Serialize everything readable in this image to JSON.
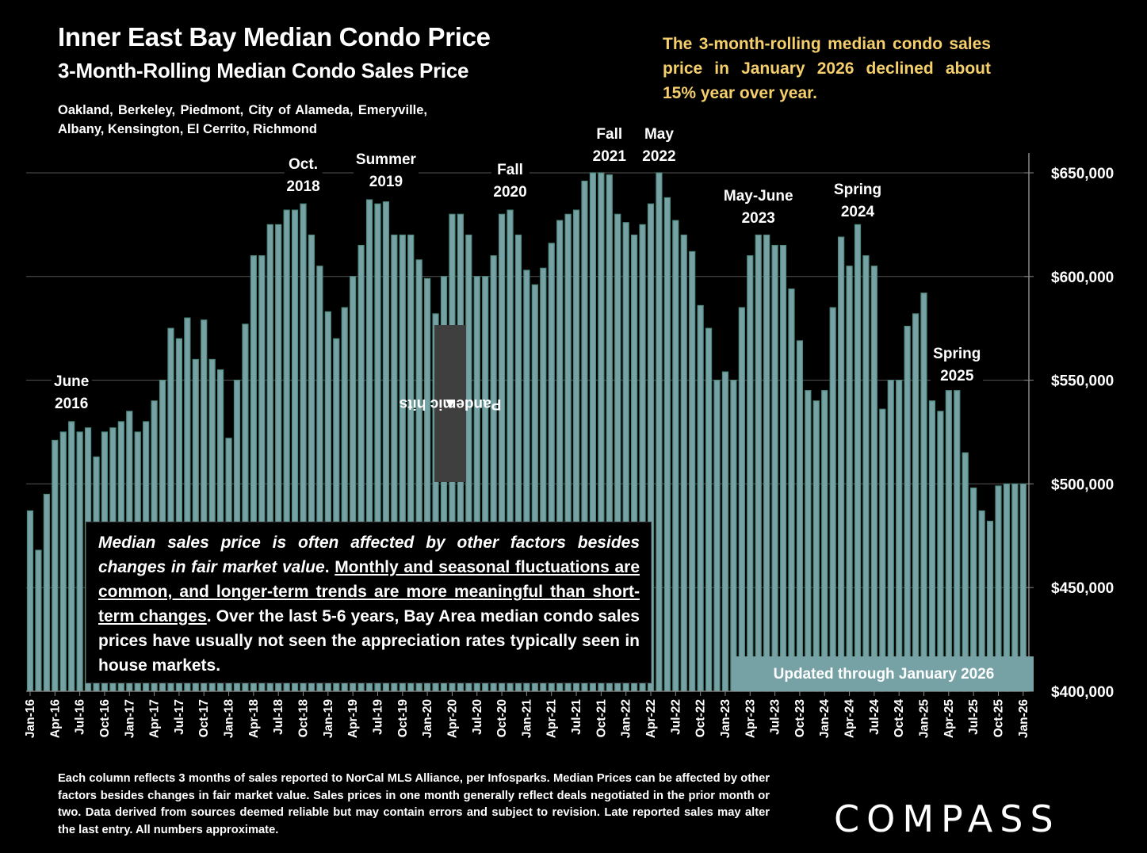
{
  "header": {
    "title": "Inner East Bay Median Condo Price",
    "subtitle": "3-Month-Rolling Median Condo Sales Price",
    "areas": "Oakland, Berkeley, Piedmont, City of Alameda, Emeryville, Albany, Kensington, El Cerrito, Richmond"
  },
  "callout": "The 3-month-rolling median condo sales price in January 2026 declined about 15% year over year.",
  "pandemic_label": "Pandemic hits",
  "pandemic_arrow": "▲",
  "note": {
    "italic": "Median sales price is often affected by other factors besides changes in fair market value",
    "sep": ". ",
    "underlined": "Monthly and seasonal fluctuations are common, and longer-term trends are more meaningful than short-term changes",
    "rest": ". Over the last 5-6 years, Bay Area median condo sales prices have usually not seen the appreciation rates typically seen in house markets."
  },
  "updated_label": "Updated through January 2026",
  "footnote": "Each column reflects 3 months of sales reported to NorCal MLS Alliance, per Infosparks. Median Prices can be affected by other factors besides changes in fair market value. Sales prices in one month generally reflect deals negotiated in the prior month or two. Data derived from sources deemed reliable but may contain errors and subject to revision. Late reported sales may alter the last entry. All numbers approximate.",
  "logo": "COMPASS",
  "colors": {
    "bar": "#76a2a6",
    "bar_edge": "#4e8a7e",
    "callout": "#f5cf6b",
    "grid": "#555555"
  },
  "chart_data": {
    "type": "bar",
    "title": "Inner East Bay Median Condo Price",
    "xlabel": "",
    "ylabel": "",
    "ylim": [
      400000,
      650000
    ],
    "yticks": [
      400000,
      450000,
      500000,
      550000,
      600000,
      650000
    ],
    "ytick_labels": [
      "$400,000",
      "$450,000",
      "$500,000",
      "$550,000",
      "$600,000",
      "$650,000"
    ],
    "grid": true,
    "y_axis_side": "right",
    "start_month": "Jan-16",
    "end_month": "Jan-26",
    "xtick_labels": [
      "Jan-16",
      "Apr-16",
      "Jul-16",
      "Oct-16",
      "Jan-17",
      "Apr-17",
      "Jul-17",
      "Oct-17",
      "Jan-18",
      "Apr-18",
      "Jul-18",
      "Oct-18",
      "Jan-19",
      "Apr-19",
      "Jul-19",
      "Oct-19",
      "Jan-20",
      "Apr-20",
      "Jul-20",
      "Oct-20",
      "Jan-21",
      "Apr-21",
      "Jul-21",
      "Oct-21",
      "Jan-22",
      "Apr-22",
      "Jul-22",
      "Oct-22",
      "Jan-23",
      "Apr-23",
      "Jul-23",
      "Oct-23",
      "Jan-24",
      "Apr-24",
      "Jul-24",
      "Oct-24",
      "Jan-25",
      "Apr-25",
      "Jul-25",
      "Oct-25",
      "Jan-26"
    ],
    "values": [
      487000,
      468000,
      495000,
      521000,
      525000,
      530000,
      525000,
      527000,
      513000,
      525000,
      527000,
      530000,
      535000,
      525000,
      530000,
      540000,
      550000,
      575000,
      570000,
      580000,
      560000,
      579000,
      560000,
      555000,
      522000,
      550000,
      577000,
      610000,
      610000,
      625000,
      625000,
      632000,
      632000,
      635000,
      620000,
      605000,
      583000,
      570000,
      585000,
      600000,
      615000,
      637000,
      635000,
      636000,
      620000,
      620000,
      620000,
      608000,
      599000,
      582000,
      600000,
      630000,
      630000,
      620000,
      600000,
      600000,
      610000,
      630000,
      632000,
      620000,
      603000,
      596000,
      604000,
      616000,
      627000,
      630000,
      632000,
      646000,
      650000,
      650000,
      649000,
      630000,
      626000,
      620000,
      625000,
      635000,
      650000,
      638000,
      627000,
      620000,
      612000,
      586000,
      575000,
      550000,
      554000,
      550000,
      585000,
      610000,
      620000,
      620000,
      615000,
      615000,
      594000,
      569000,
      545000,
      540000,
      545000,
      585000,
      619000,
      605000,
      625000,
      610000,
      605000,
      536000,
      550000,
      550000,
      576000,
      582000,
      592000,
      540000,
      535000,
      545000,
      545000,
      515000,
      498000,
      487000,
      482000,
      499000,
      500000,
      500000,
      500000
    ],
    "annotations": [
      {
        "label": "June\n2016",
        "index": 5
      },
      {
        "label": "Oct.\n2018",
        "index": 33
      },
      {
        "label": "Summer\n2019",
        "index": 43
      },
      {
        "label": "Fall\n2020",
        "index": 58
      },
      {
        "label": "Fall\n2021",
        "index": 70
      },
      {
        "label": "May\n2022",
        "index": 76
      },
      {
        "label": "May-June\n2023",
        "index": 88
      },
      {
        "label": "Spring\n2024",
        "index": 100
      },
      {
        "label": "Spring\n2025",
        "index": 112
      }
    ]
  }
}
